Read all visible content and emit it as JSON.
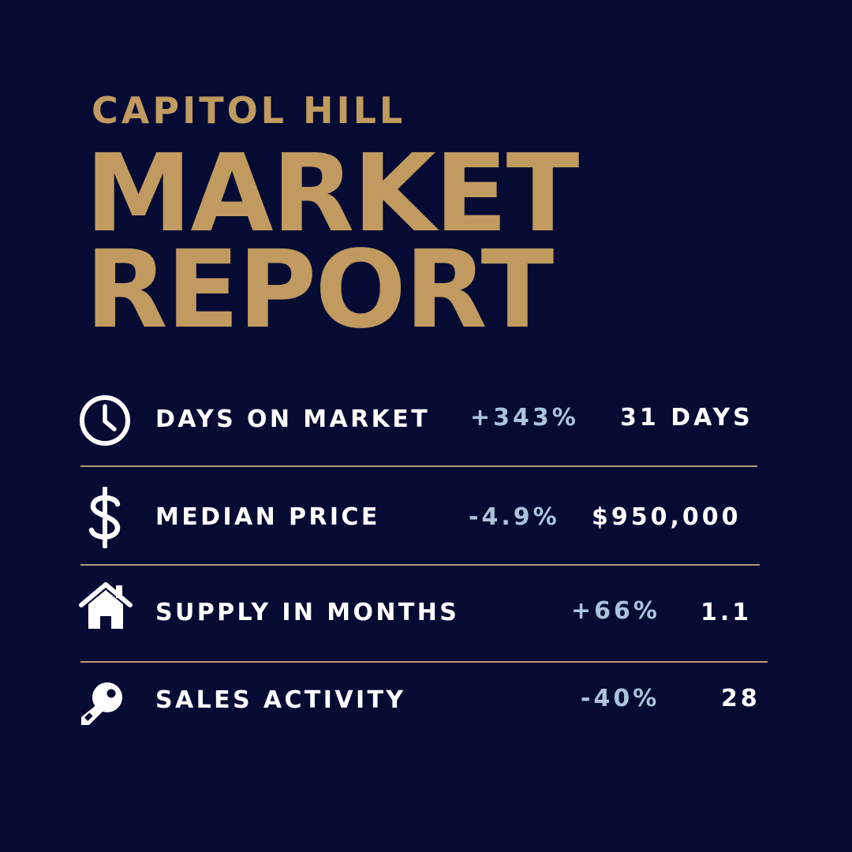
{
  "header": {
    "subtitle": "CAPITOL HILL",
    "title_line1": "MARKET",
    "title_line2": "REPORT"
  },
  "colors": {
    "background": "#050b33",
    "gold": "#c19a5f",
    "label": "#ffffff",
    "change": "#aac4dc",
    "divider": "#b79b74"
  },
  "rows": [
    {
      "icon": "clock-icon",
      "label": "DAYS ON MARKET",
      "change": "+343%",
      "value": "31 DAYS"
    },
    {
      "icon": "dollar-sign-icon",
      "label": "MEDIAN PRICE",
      "change": "-4.9%",
      "value": "$950,000"
    },
    {
      "icon": "house-icon",
      "label": "SUPPLY IN MONTHS",
      "change": "+66%",
      "value": "1.1"
    },
    {
      "icon": "key-icon",
      "label": "SALES ACTIVITY",
      "change": "-40%",
      "value": "28"
    }
  ]
}
